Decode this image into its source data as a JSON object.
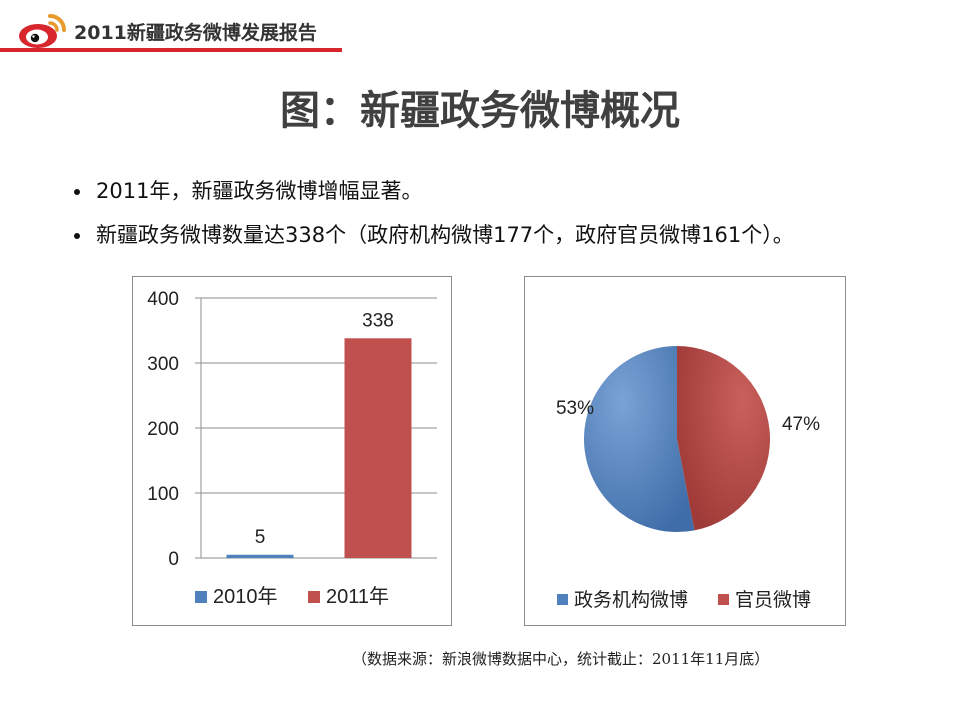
{
  "header": {
    "title": "2011新疆政务微博发展报告",
    "accent_color": "#d7262c",
    "logo_icon": "weibo-logo-icon"
  },
  "page_title": "图：新疆政务微博概况",
  "bullets": [
    "2011年，新疆政务微博增幅显著。",
    "新疆政务微博数量达338个（政府机构微博177个，政府官员微博161个）。"
  ],
  "chart_data": [
    {
      "type": "bar",
      "categories": [
        "2010年",
        "2011年"
      ],
      "values": [
        5,
        338
      ],
      "ylim": [
        0,
        400
      ],
      "y_ticks": [
        0,
        100,
        200,
        300,
        400
      ],
      "colors": [
        "#4f81bd",
        "#c0504d"
      ],
      "grid": true,
      "legend": "bottom",
      "title": "",
      "xlabel": "",
      "ylabel": ""
    },
    {
      "type": "pie",
      "labels": [
        "政务机构微博",
        "官员微博"
      ],
      "values": [
        53,
        47
      ],
      "value_labels": [
        "53%",
        "47%"
      ],
      "colors": [
        "#4f81bd",
        "#c0504d"
      ],
      "legend": "bottom",
      "title": ""
    }
  ],
  "source_note": "（数据来源：新浪微博数据中心，统计截止：2011年11月底）"
}
